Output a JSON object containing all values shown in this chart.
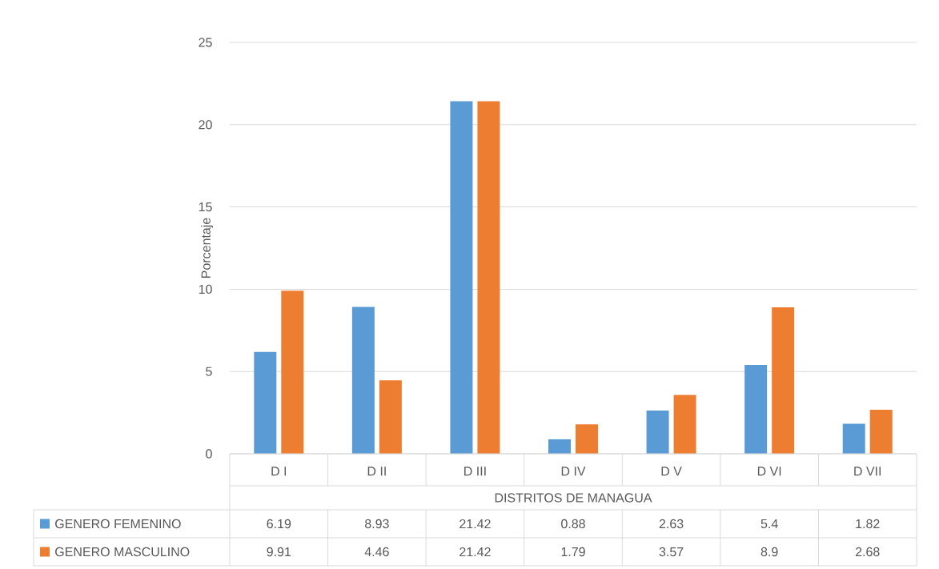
{
  "chart_data": {
    "type": "bar",
    "xlabel": "DISTRITOS DE MANAGUA",
    "ylabel": "Porcentaje",
    "categories": [
      "D I",
      "D II",
      "D III",
      "D IV",
      "D V",
      "D VI",
      "D VII"
    ],
    "series": [
      {
        "name": "GENERO FEMENINO",
        "color": "#5b9bd5",
        "values": [
          6.19,
          8.93,
          21.42,
          0.88,
          2.63,
          5.4,
          1.82
        ]
      },
      {
        "name": "GENERO MASCULINO",
        "color": "#ed7d31",
        "values": [
          9.91,
          4.46,
          21.42,
          1.79,
          3.57,
          8.9,
          2.68
        ]
      }
    ],
    "ylim": [
      0,
      25
    ],
    "yticks": [
      0,
      5,
      10,
      15,
      20,
      25
    ],
    "grid": "y",
    "legend": "bottom",
    "data_labels": true
  }
}
